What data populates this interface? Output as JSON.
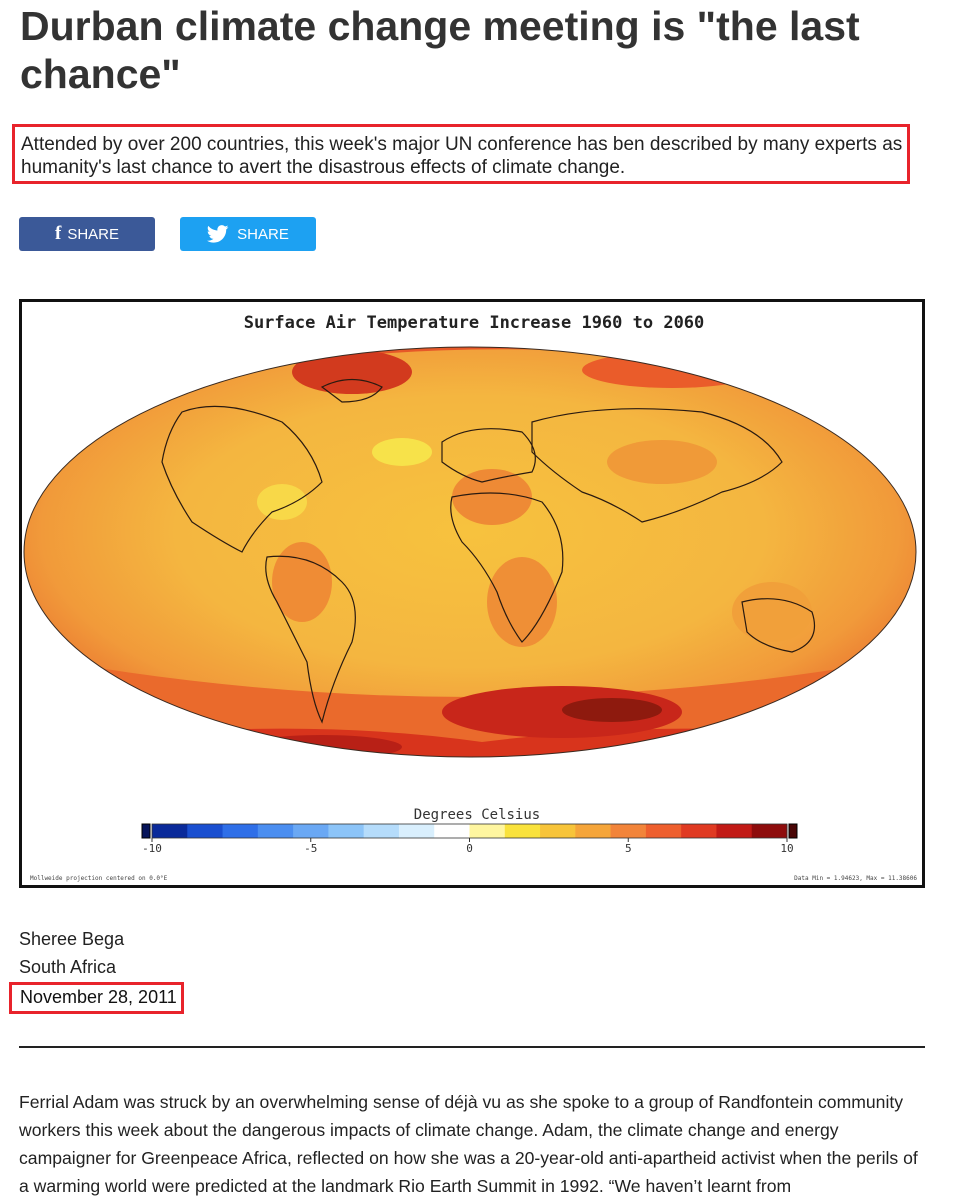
{
  "article": {
    "headline": "Durban climate change meeting is \"the last chance\"",
    "standfirst": "Attended by over 200 countries, this week's major UN conference has ben described by many experts as humanity's last chance to avert the disastrous effects of climate change.",
    "share_facebook": "SHARE",
    "share_twitter": "SHARE",
    "author": "Sheree Bega",
    "region": "South Africa",
    "date": "November 28, 2011",
    "body": "Ferrial Adam was struck by an overwhelming sense of déjà vu as she spoke to a group of Randfontein community workers this week about the dangerous impacts of climate change. Adam, the climate change and energy campaigner for Greenpeace Africa, reflected on how she was a 20-year-old anti-apartheid activist when the perils of a warming world were predicted at the landmark Rio Earth Summit in 1992. “We haven’t learnt from"
  },
  "figure": {
    "title": "Surface Air Temperature Increase 1960 to 2060",
    "legend_title": "Degrees Celsius",
    "tick_labels": [
      "-10",
      "-5",
      "0",
      "5",
      "10"
    ],
    "footer_left": "Mollweide projection centered on 0.0°E",
    "footer_right": "Data Min = 1.94623, Max = 11.38606",
    "colorbar_colors": [
      "#0a2a9a",
      "#1a4fd0",
      "#2f6fe8",
      "#4b8ef0",
      "#6aa8f4",
      "#8cc4f8",
      "#b5dcfb",
      "#d9effd",
      "#ffffff",
      "#fff6a0",
      "#f9e23c",
      "#f7c43a",
      "#f5a53a",
      "#f2843a",
      "#ee5f2e",
      "#e03a22",
      "#c21a16",
      "#8e0c0c"
    ],
    "colors": {
      "fb": "#3b5998",
      "tw": "#1da1f2",
      "highlight": "#e8232b"
    }
  }
}
